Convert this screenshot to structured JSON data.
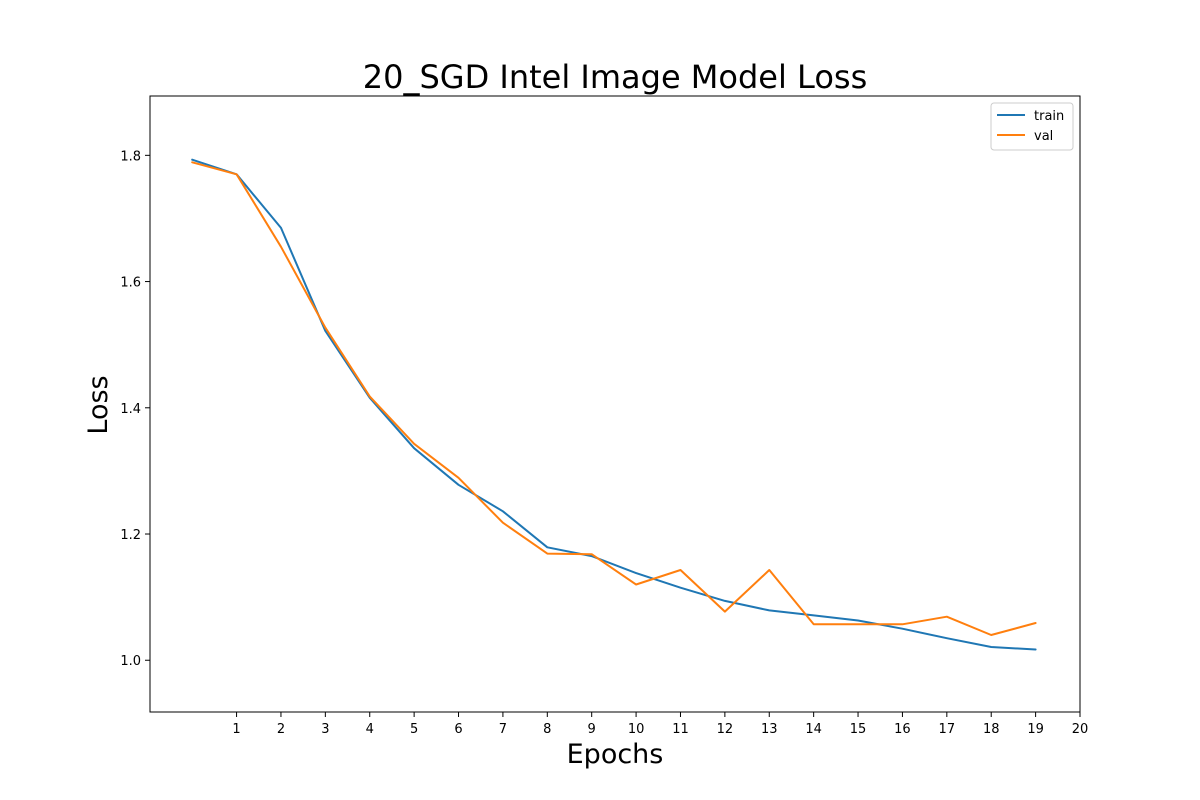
{
  "chart_data": {
    "type": "line",
    "title": "20_SGD Intel Image Model Loss",
    "xlabel": "Epochs",
    "ylabel": "Loss",
    "x": [
      0,
      1,
      2,
      3,
      4,
      5,
      6,
      7,
      8,
      9,
      10,
      11,
      12,
      13,
      14,
      15,
      16,
      17,
      18,
      19
    ],
    "xticks": [
      1,
      2,
      3,
      4,
      5,
      6,
      7,
      8,
      9,
      10,
      11,
      12,
      13,
      14,
      15,
      16,
      17,
      18,
      19,
      20
    ],
    "yticks": [
      1.0,
      1.2,
      1.4,
      1.6,
      1.8
    ],
    "xlim": [
      -0.95,
      20
    ],
    "ylim": [
      0.918,
      1.894
    ],
    "grid": false,
    "legend_position": "top-right",
    "series": [
      {
        "name": "train",
        "color": "#1f77b4",
        "values": [
          1.793,
          1.77,
          1.685,
          1.522,
          1.416,
          1.336,
          1.278,
          1.236,
          1.179,
          1.165,
          1.138,
          1.115,
          1.094,
          1.079,
          1.071,
          1.063,
          1.05,
          1.035,
          1.021,
          1.017
        ]
      },
      {
        "name": "val",
        "color": "#ff7f0e",
        "values": [
          1.789,
          1.77,
          1.655,
          1.527,
          1.418,
          1.343,
          1.289,
          1.218,
          1.169,
          1.168,
          1.12,
          1.143,
          1.077,
          1.143,
          1.057,
          1.057,
          1.057,
          1.069,
          1.04,
          1.059
        ]
      }
    ]
  }
}
